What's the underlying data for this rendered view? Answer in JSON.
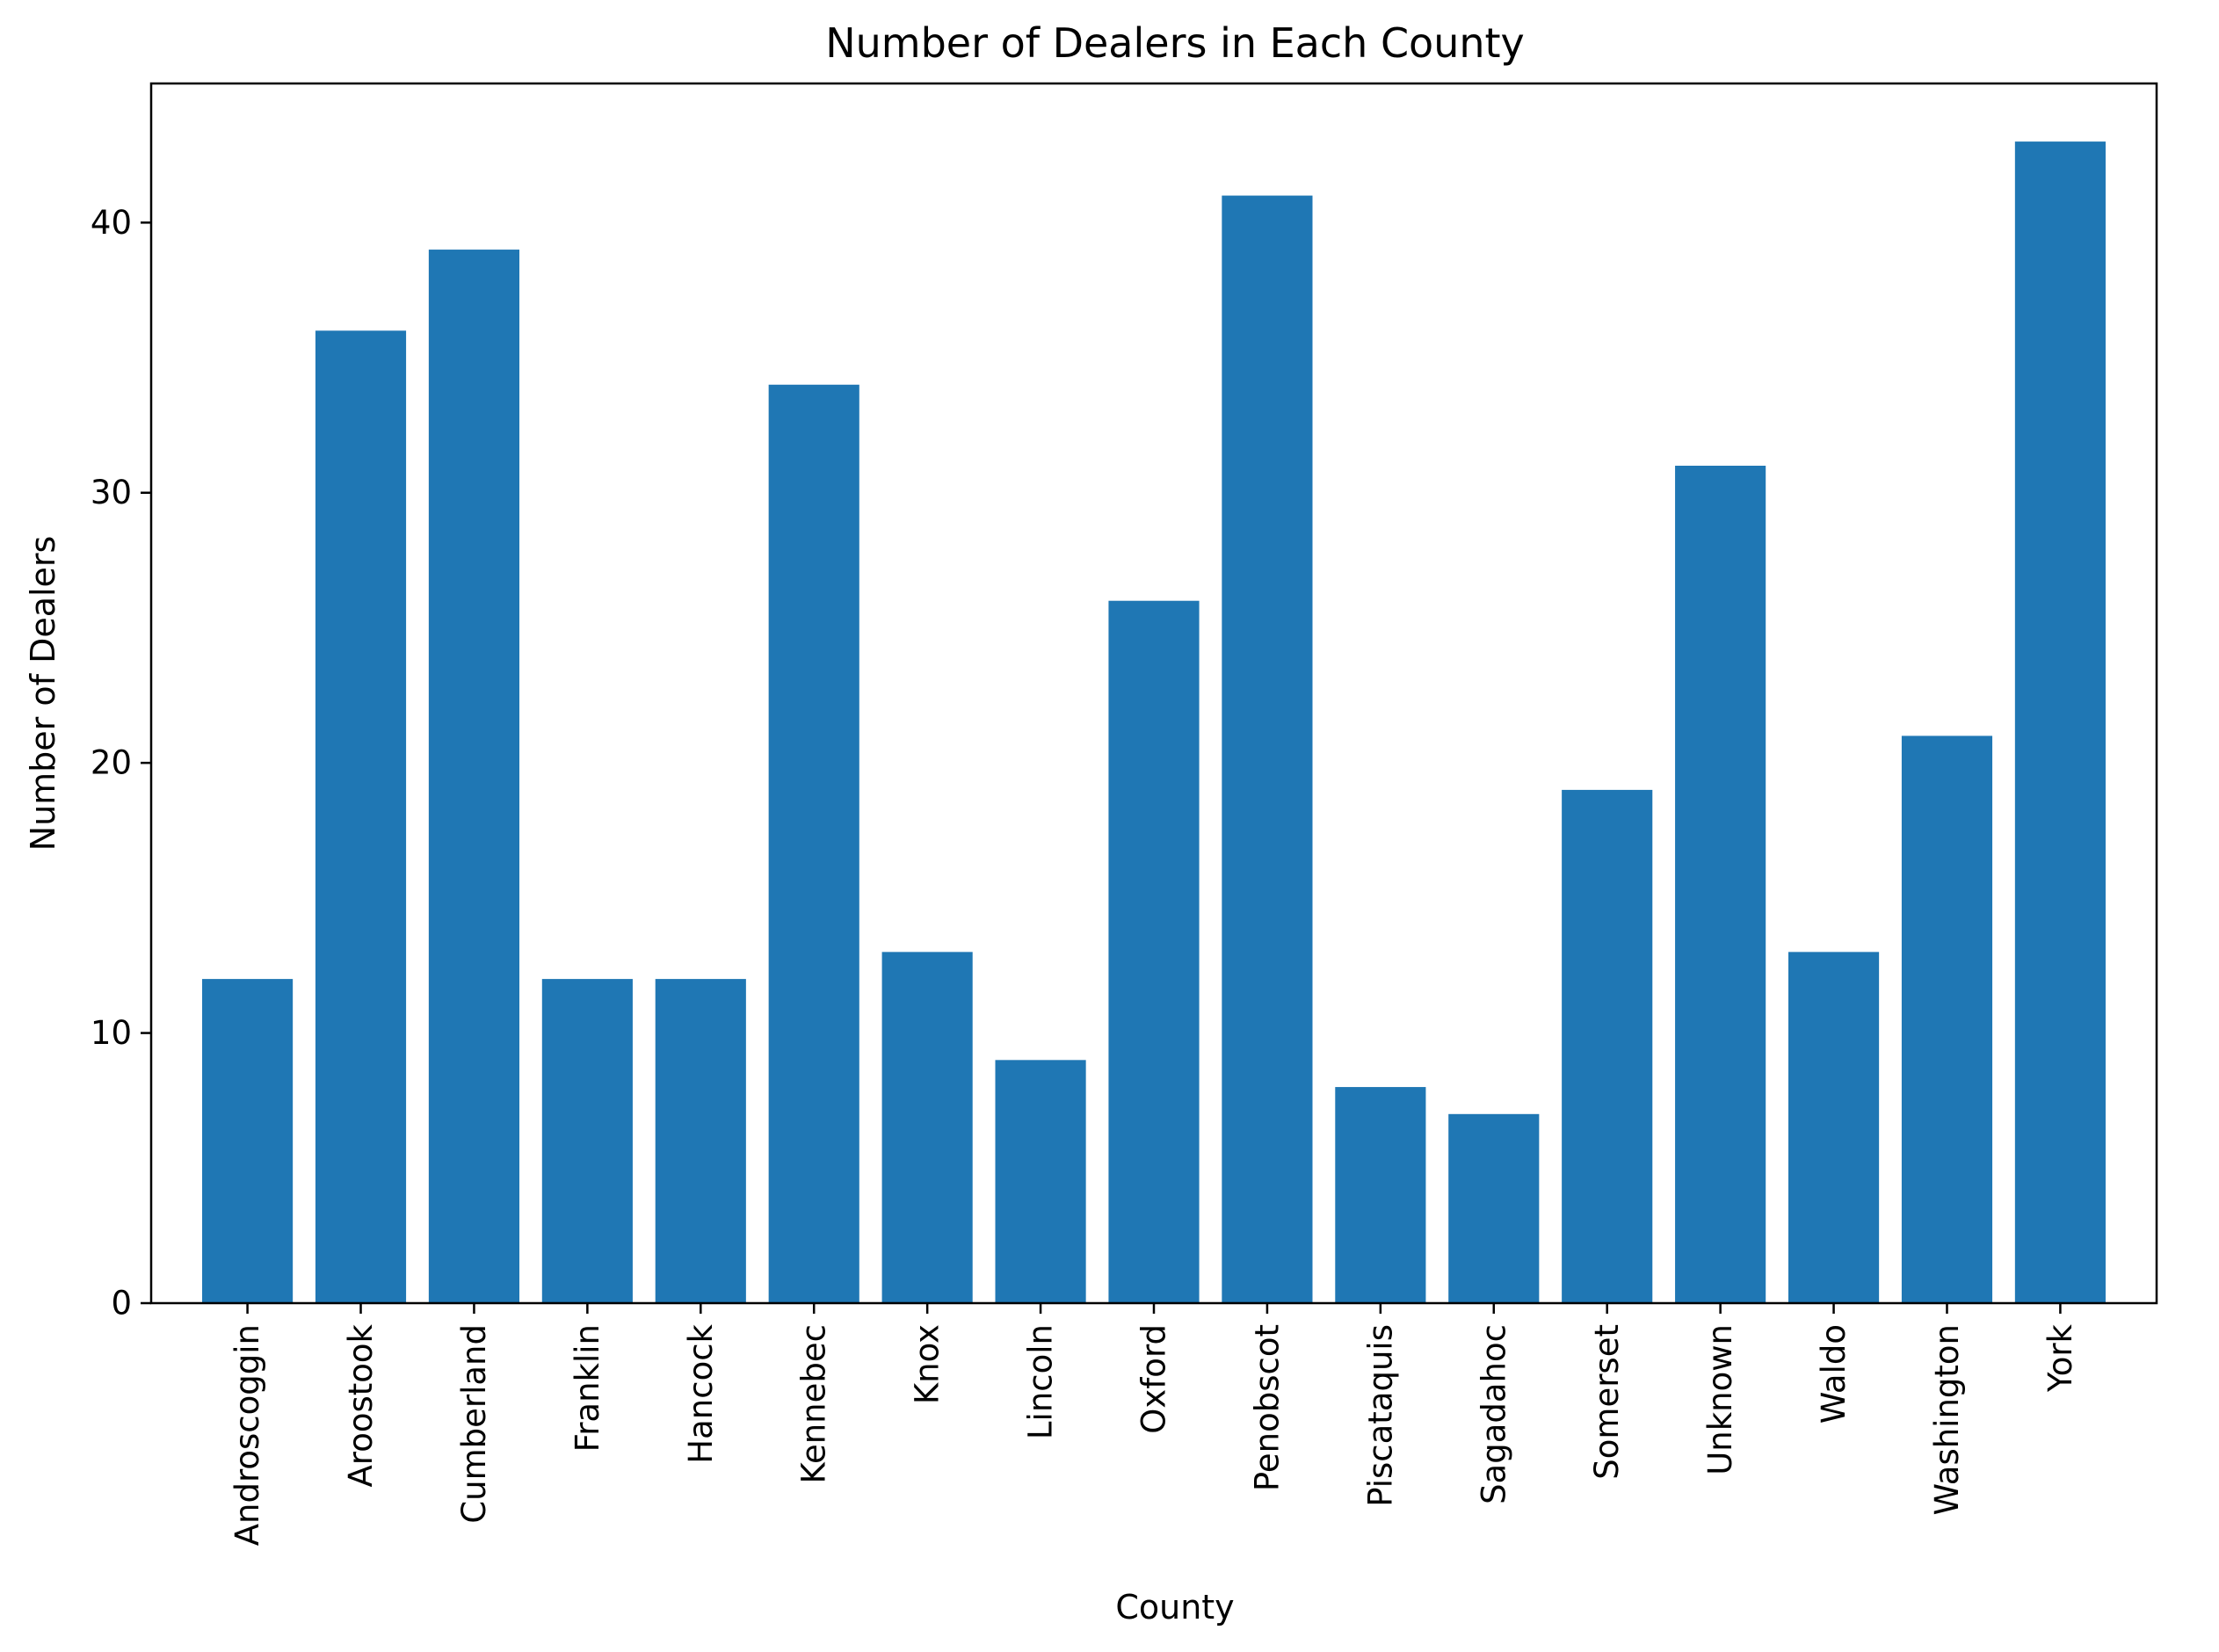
{
  "chart_data": {
    "type": "bar",
    "title": "Number of Dealers in Each County",
    "xlabel": "County",
    "ylabel": "Number of Dealers",
    "categories": [
      "Androscoggin",
      "Aroostook",
      "Cumberland",
      "Franklin",
      "Hancock",
      "Kennebec",
      "Knox",
      "Lincoln",
      "Oxford",
      "Penobscot",
      "Piscataquis",
      "Sagadahoc",
      "Somerset",
      "Unknown",
      "Waldo",
      "Washington",
      "York"
    ],
    "values": [
      12,
      36,
      39,
      12,
      12,
      34,
      13,
      9,
      26,
      41,
      8,
      7,
      19,
      31,
      13,
      21,
      43
    ],
    "ylim": [
      0,
      45.15
    ],
    "yticks": [
      0,
      10,
      20,
      30,
      40
    ],
    "grid": false,
    "colors": {
      "bar": "#1f77b4"
    }
  }
}
